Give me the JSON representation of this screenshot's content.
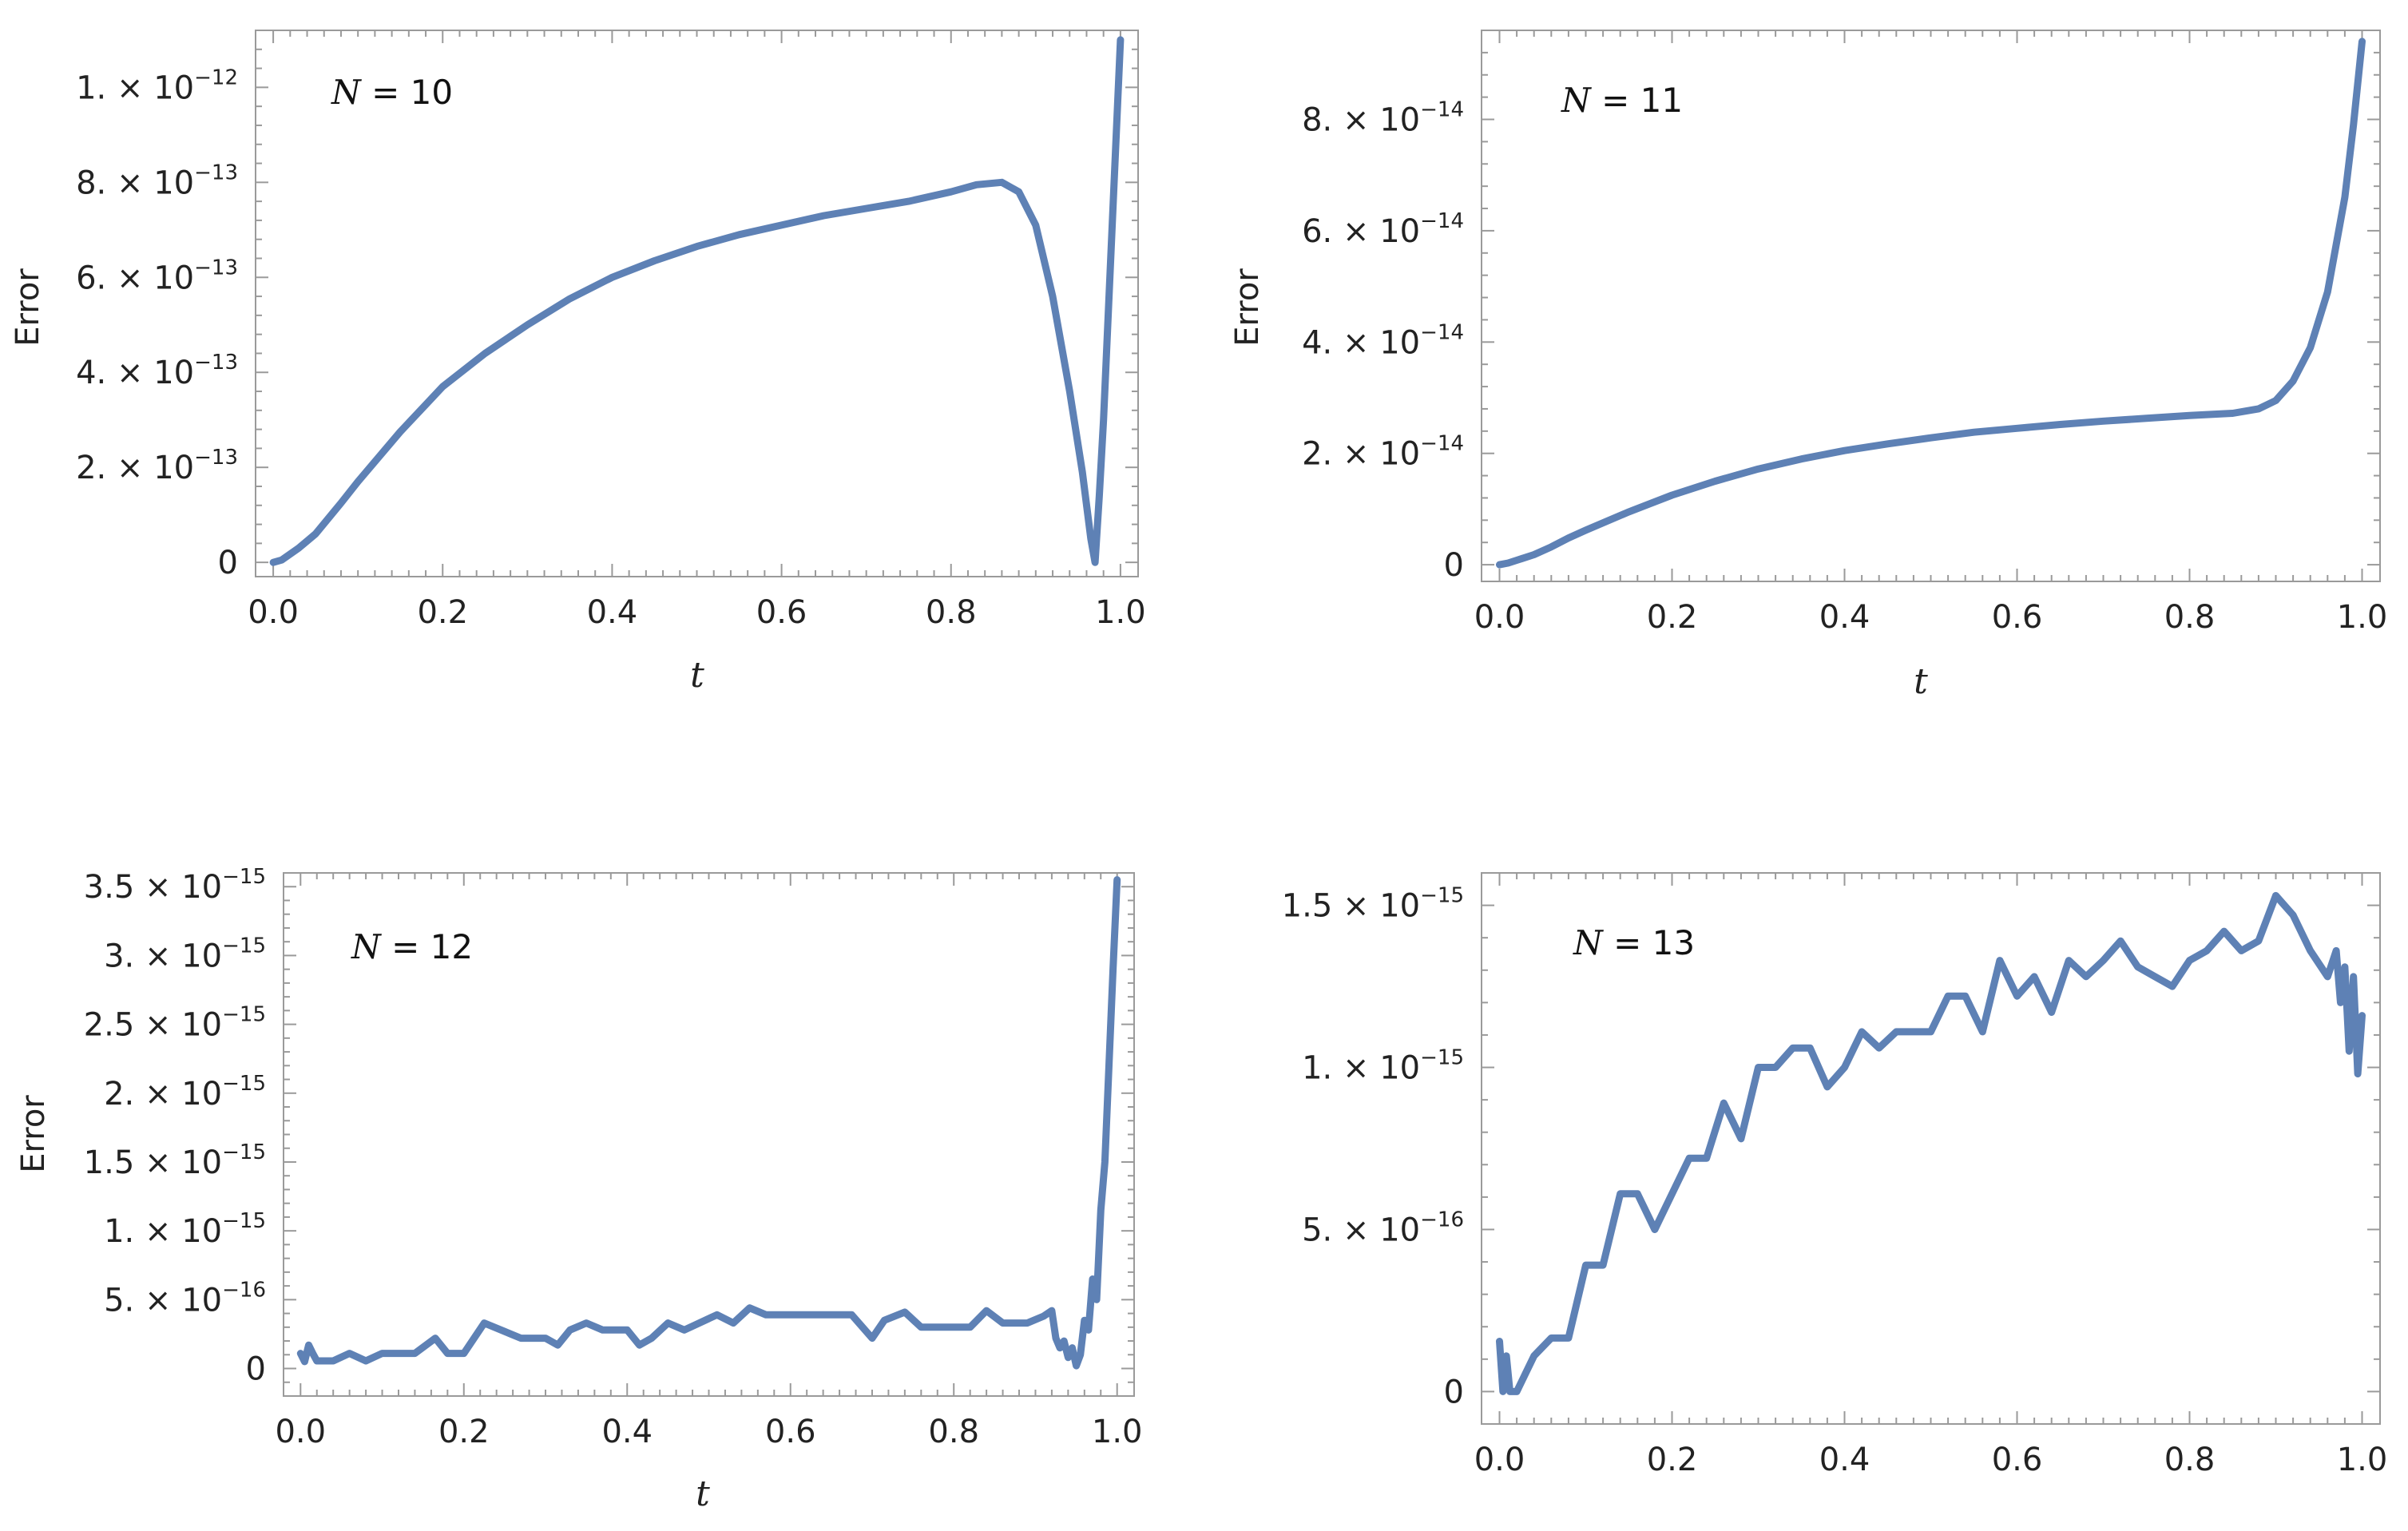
{
  "colors": {
    "series": "#5E81B5",
    "frame": "#9a9a9a",
    "text": "#222222"
  },
  "chart_data": [
    {
      "type": "line",
      "annotation": "N = 10",
      "xlabel": "t",
      "ylabel": "Error",
      "xlim": [
        0,
        1
      ],
      "ylim": [
        -3e-14,
        1.12e-12
      ],
      "xticks": [
        0,
        0.2,
        0.4,
        0.6,
        0.8,
        1.0
      ],
      "xtick_labels": [
        "0.0",
        "0.2",
        "0.4",
        "0.6",
        "0.8",
        "1.0"
      ],
      "yticks": [
        {
          "value": 0,
          "mant": "0",
          "exp": ""
        },
        {
          "value": 2e-13,
          "mant": "2.",
          "exp": "−13"
        },
        {
          "value": 4e-13,
          "mant": "4.",
          "exp": "−13"
        },
        {
          "value": 6e-13,
          "mant": "6.",
          "exp": "−13"
        },
        {
          "value": 8e-13,
          "mant": "8.",
          "exp": "−13"
        },
        {
          "value": 1e-12,
          "mant": "1.",
          "exp": "−12"
        }
      ],
      "x": [
        0,
        0.01,
        0.03,
        0.05,
        0.08,
        0.1,
        0.15,
        0.2,
        0.25,
        0.3,
        0.35,
        0.4,
        0.45,
        0.5,
        0.55,
        0.6,
        0.65,
        0.7,
        0.75,
        0.8,
        0.83,
        0.86,
        0.88,
        0.9,
        0.92,
        0.94,
        0.955,
        0.965,
        0.97,
        0.975,
        0.98,
        0.99,
        1.0
      ],
      "y": [
        0,
        5e-15,
        3e-14,
        6e-14,
        1.25e-13,
        1.7e-13,
        2.75e-13,
        3.7e-13,
        4.4e-13,
        5e-13,
        5.55e-13,
        6e-13,
        6.35e-13,
        6.65e-13,
        6.9e-13,
        7.1e-13,
        7.3e-13,
        7.45e-13,
        7.6e-13,
        7.8e-13,
        7.95e-13,
        8e-13,
        7.8e-13,
        7.1e-13,
        5.6e-13,
        3.6e-13,
        1.9e-13,
        5e-14,
        0,
        1.4e-13,
        3e-13,
        7e-13,
        1.1e-12
      ]
    },
    {
      "type": "line",
      "annotation": "N = 11",
      "xlabel": "t",
      "ylabel": "Error",
      "xlim": [
        0,
        1
      ],
      "ylim": [
        -3e-15,
        9.6e-14
      ],
      "xticks": [
        0,
        0.2,
        0.4,
        0.6,
        0.8,
        1.0
      ],
      "xtick_labels": [
        "0.0",
        "0.2",
        "0.4",
        "0.6",
        "0.8",
        "1.0"
      ],
      "yticks": [
        {
          "value": 0,
          "mant": "0",
          "exp": ""
        },
        {
          "value": 2e-14,
          "mant": "2.",
          "exp": "−14"
        },
        {
          "value": 4e-14,
          "mant": "4.",
          "exp": "−14"
        },
        {
          "value": 6e-14,
          "mant": "6.",
          "exp": "−14"
        },
        {
          "value": 8e-14,
          "mant": "8.",
          "exp": "−14"
        }
      ],
      "x": [
        0,
        0.01,
        0.02,
        0.04,
        0.06,
        0.08,
        0.1,
        0.15,
        0.2,
        0.25,
        0.3,
        0.35,
        0.4,
        0.45,
        0.5,
        0.55,
        0.6,
        0.65,
        0.7,
        0.75,
        0.8,
        0.85,
        0.88,
        0.9,
        0.92,
        0.94,
        0.96,
        0.98,
        0.99,
        1.0
      ],
      "y": [
        0,
        3e-16,
        8e-16,
        1.8e-15,
        3.2e-15,
        4.8e-15,
        6.2e-15,
        9.5e-15,
        1.25e-14,
        1.5e-14,
        1.72e-14,
        1.9e-14,
        2.05e-14,
        2.17e-14,
        2.28e-14,
        2.38e-14,
        2.45e-14,
        2.52e-14,
        2.58e-14,
        2.63e-14,
        2.68e-14,
        2.72e-14,
        2.8e-14,
        2.95e-14,
        3.3e-14,
        3.9e-14,
        4.9e-14,
        6.6e-14,
        7.9e-14,
        9.4e-14
      ]
    },
    {
      "type": "line",
      "annotation": "N = 12",
      "xlabel": "t",
      "ylabel": "Error",
      "xlim": [
        0,
        1
      ],
      "ylim": [
        -2e-16,
        3.6e-15
      ],
      "xticks": [
        0,
        0.2,
        0.4,
        0.6,
        0.8,
        1.0
      ],
      "xtick_labels": [
        "0.0",
        "0.2",
        "0.4",
        "0.6",
        "0.8",
        "1.0"
      ],
      "yticks": [
        {
          "value": 0,
          "mant": "0",
          "exp": ""
        },
        {
          "value": 5e-16,
          "mant": "5.",
          "exp": "−16"
        },
        {
          "value": 1e-15,
          "mant": "1.",
          "exp": "−15"
        },
        {
          "value": 1.5e-15,
          "mant": "1.5",
          "exp": "−15"
        },
        {
          "value": 2e-15,
          "mant": "2.",
          "exp": "−15"
        },
        {
          "value": 2.5e-15,
          "mant": "2.5",
          "exp": "−15"
        },
        {
          "value": 3e-15,
          "mant": "3.",
          "exp": "−15"
        },
        {
          "value": 3.5e-15,
          "mant": "3.5",
          "exp": "−15"
        }
      ],
      "x": [
        0,
        0.005,
        0.01,
        0.015,
        0.02,
        0.04,
        0.06,
        0.08,
        0.1,
        0.14,
        0.165,
        0.18,
        0.2,
        0.225,
        0.27,
        0.3,
        0.315,
        0.33,
        0.35,
        0.37,
        0.4,
        0.415,
        0.43,
        0.45,
        0.47,
        0.51,
        0.53,
        0.55,
        0.57,
        0.6,
        0.65,
        0.675,
        0.7,
        0.715,
        0.74,
        0.76,
        0.79,
        0.8,
        0.82,
        0.84,
        0.86,
        0.89,
        0.91,
        0.92,
        0.925,
        0.93,
        0.935,
        0.94,
        0.945,
        0.95,
        0.955,
        0.96,
        0.965,
        0.97,
        0.975,
        0.98,
        0.985,
        0.99,
        0.995,
        1.0
      ],
      "y": [
        1.1e-16,
        5e-17,
        1.7e-16,
        1.1e-16,
        5.5e-17,
        5.5e-17,
        1.1e-16,
        5.5e-17,
        1.1e-16,
        1.1e-16,
        2.2e-16,
        1.1e-16,
        1.1e-16,
        3.3e-16,
        2.2e-16,
        2.2e-16,
        1.7e-16,
        2.8e-16,
        3.3e-16,
        2.8e-16,
        2.8e-16,
        1.7e-16,
        2.2e-16,
        3.3e-16,
        2.8e-16,
        3.9e-16,
        3.3e-16,
        4.4e-16,
        3.9e-16,
        3.9e-16,
        3.9e-16,
        3.9e-16,
        2.2e-16,
        3.5e-16,
        4.1e-16,
        3e-16,
        3e-16,
        3e-16,
        3e-16,
        4.2e-16,
        3.3e-16,
        3.3e-16,
        3.8e-16,
        4.2e-16,
        2.2e-16,
        1.5e-16,
        2e-16,
        8e-17,
        1.5e-16,
        2e-17,
        1e-16,
        3.5e-16,
        2.8e-16,
        6.5e-16,
        5e-16,
        1.15e-15,
        1.5e-15,
        2.2e-15,
        2.9e-15,
        3.55e-15
      ]
    },
    {
      "type": "line",
      "annotation": "N = 13",
      "xlabel": "",
      "ylabel": "",
      "xlim": [
        0,
        1
      ],
      "ylim": [
        -1e-16,
        1.6e-15
      ],
      "xticks": [
        0,
        0.2,
        0.4,
        0.6,
        0.8,
        1.0
      ],
      "xtick_labels": [
        "0.0",
        "0.2",
        "0.4",
        "0.6",
        "0.8",
        "1.0"
      ],
      "yticks": [
        {
          "value": 0,
          "mant": "0",
          "exp": ""
        },
        {
          "value": 5e-16,
          "mant": "5.",
          "exp": "−16"
        },
        {
          "value": 1e-15,
          "mant": "1.",
          "exp": "−15"
        },
        {
          "value": 1.5e-15,
          "mant": "1.5",
          "exp": "−15"
        }
      ],
      "x": [
        0,
        0.004,
        0.008,
        0.012,
        0.02,
        0.04,
        0.06,
        0.08,
        0.1,
        0.12,
        0.14,
        0.16,
        0.18,
        0.2,
        0.22,
        0.24,
        0.26,
        0.28,
        0.3,
        0.32,
        0.34,
        0.36,
        0.38,
        0.4,
        0.42,
        0.44,
        0.46,
        0.5,
        0.52,
        0.54,
        0.56,
        0.58,
        0.6,
        0.62,
        0.64,
        0.66,
        0.68,
        0.7,
        0.72,
        0.74,
        0.76,
        0.78,
        0.8,
        0.82,
        0.84,
        0.86,
        0.88,
        0.9,
        0.92,
        0.94,
        0.96,
        0.97,
        0.975,
        0.98,
        0.985,
        0.99,
        0.995,
        1.0
      ],
      "y": [
        1.55e-16,
        0,
        1.1e-16,
        0,
        0,
        1.1e-16,
        1.65e-16,
        1.65e-16,
        3.9e-16,
        3.9e-16,
        6.1e-16,
        6.1e-16,
        5e-16,
        6.1e-16,
        7.2e-16,
        7.2e-16,
        8.9e-16,
        7.8e-16,
        1e-15,
        1e-15,
        1.06e-15,
        1.06e-15,
        9.4e-16,
        1e-15,
        1.11e-15,
        1.06e-15,
        1.11e-15,
        1.11e-15,
        1.22e-15,
        1.22e-15,
        1.11e-15,
        1.33e-15,
        1.22e-15,
        1.28e-15,
        1.17e-15,
        1.33e-15,
        1.28e-15,
        1.33e-15,
        1.39e-15,
        1.31e-15,
        1.28e-15,
        1.25e-15,
        1.33e-15,
        1.36e-15,
        1.42e-15,
        1.36e-15,
        1.39e-15,
        1.53e-15,
        1.47e-15,
        1.36e-15,
        1.28e-15,
        1.36e-15,
        1.2e-15,
        1.31e-15,
        1.05e-15,
        1.28e-15,
        9.8e-16,
        1.16e-15
      ]
    }
  ]
}
